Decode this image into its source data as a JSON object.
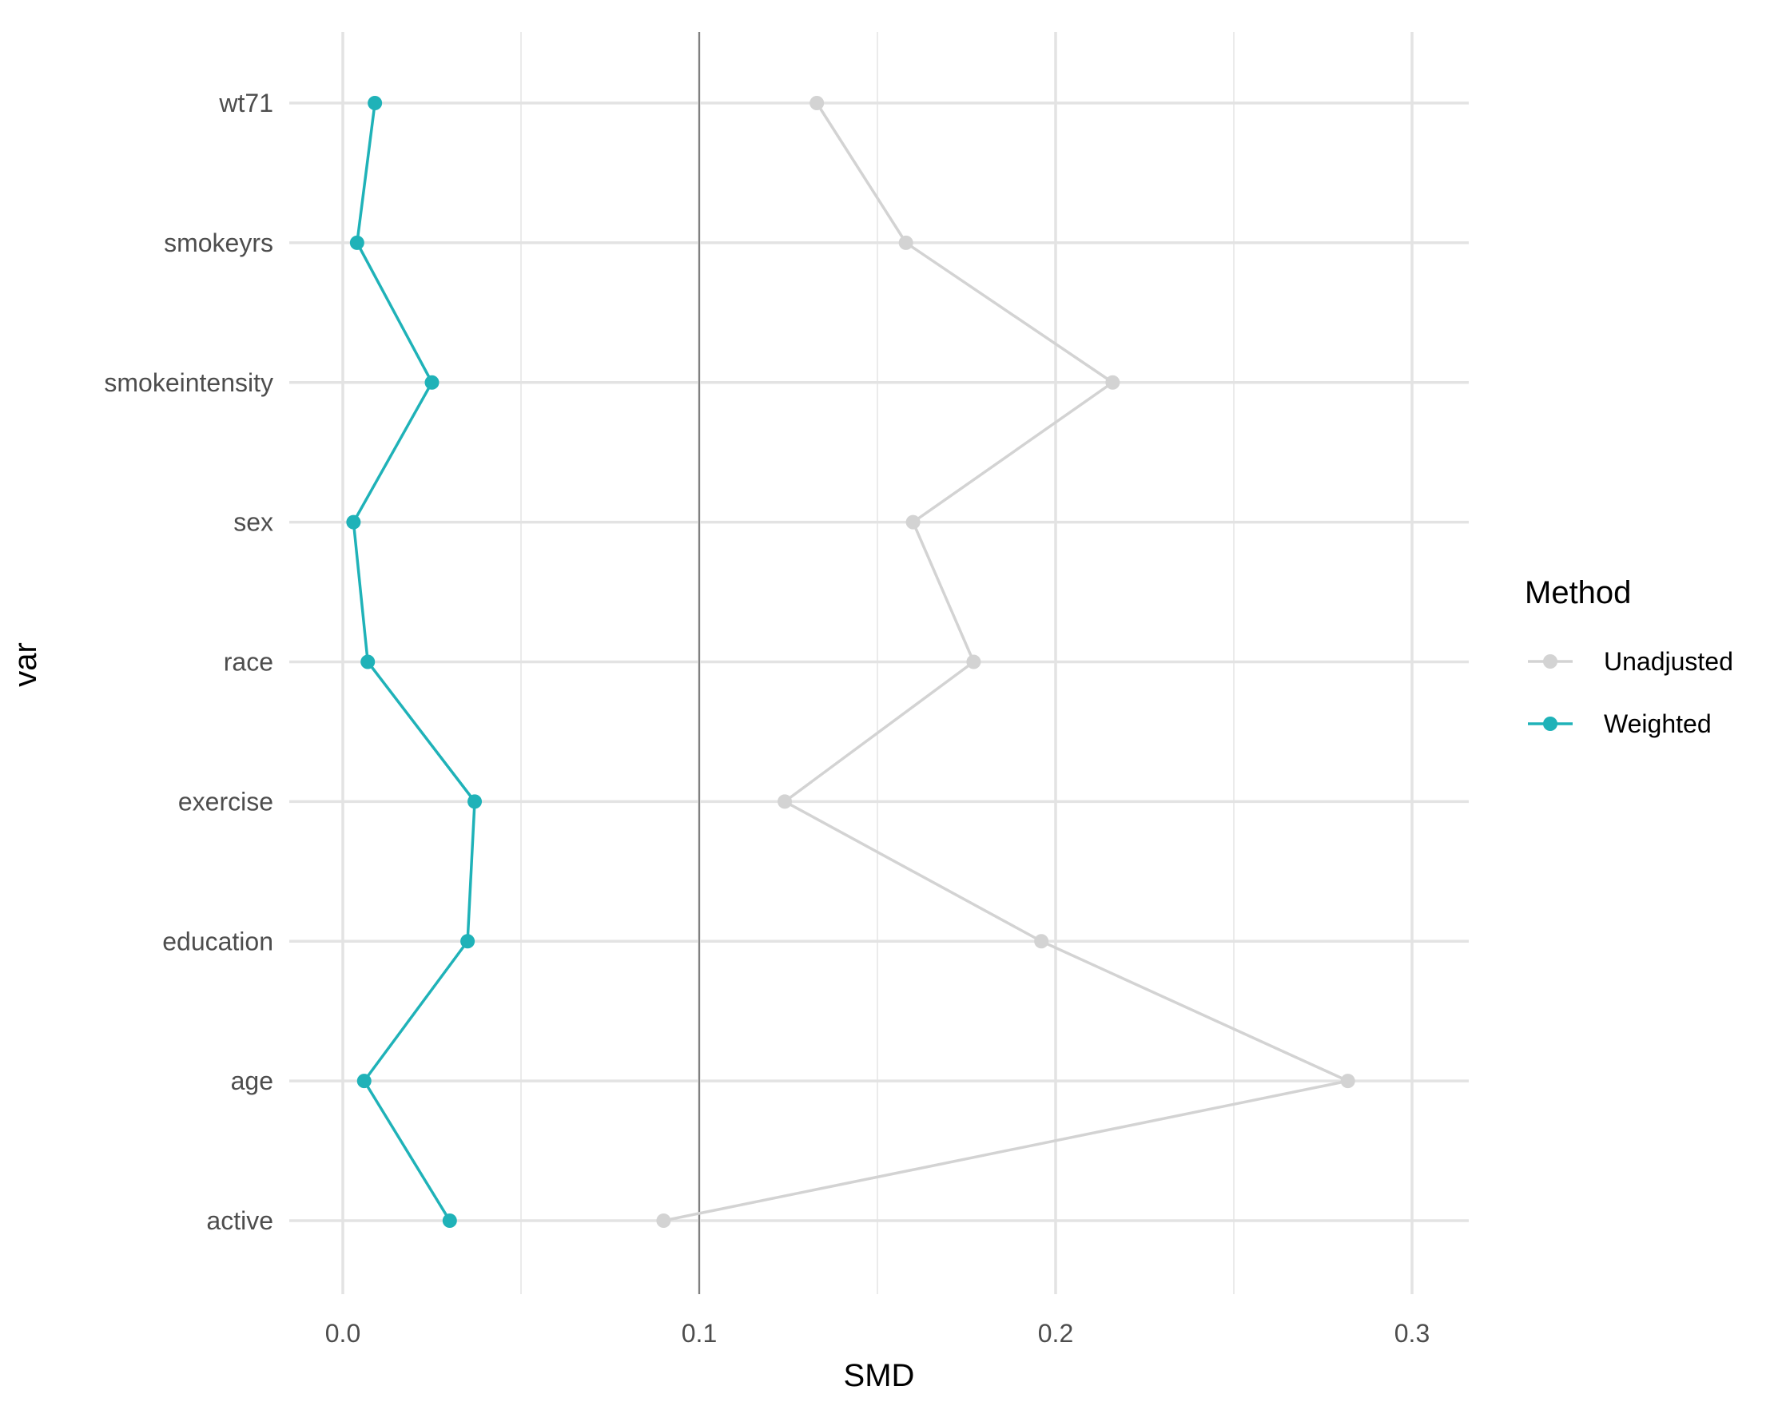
{
  "chart_data": {
    "type": "line",
    "xlabel": "SMD",
    "ylabel": "var",
    "xlim": [
      -0.015,
      0.315
    ],
    "x_ticks": [
      0.0,
      0.1,
      0.2,
      0.3
    ],
    "x_tick_labels": [
      "0.0",
      "0.1",
      "0.2",
      "0.3"
    ],
    "x_minor_ticks": [
      0.05,
      0.15,
      0.25
    ],
    "reference_line_x": 0.1,
    "categories": [
      "active",
      "age",
      "education",
      "exercise",
      "race",
      "sex",
      "smokeintensity",
      "smokeyrs",
      "wt71"
    ],
    "grid": true,
    "legend": {
      "title": "Method",
      "position": "right"
    },
    "series": [
      {
        "name": "Unadjusted",
        "color": "#d3d3d3",
        "values": [
          0.09,
          0.282,
          0.196,
          0.124,
          0.177,
          0.16,
          0.216,
          0.158,
          0.133
        ]
      },
      {
        "name": "Weighted",
        "color": "#1fb2b8",
        "values": [
          0.03,
          0.006,
          0.035,
          0.037,
          0.007,
          0.003,
          0.025,
          0.004,
          0.009
        ]
      }
    ]
  }
}
